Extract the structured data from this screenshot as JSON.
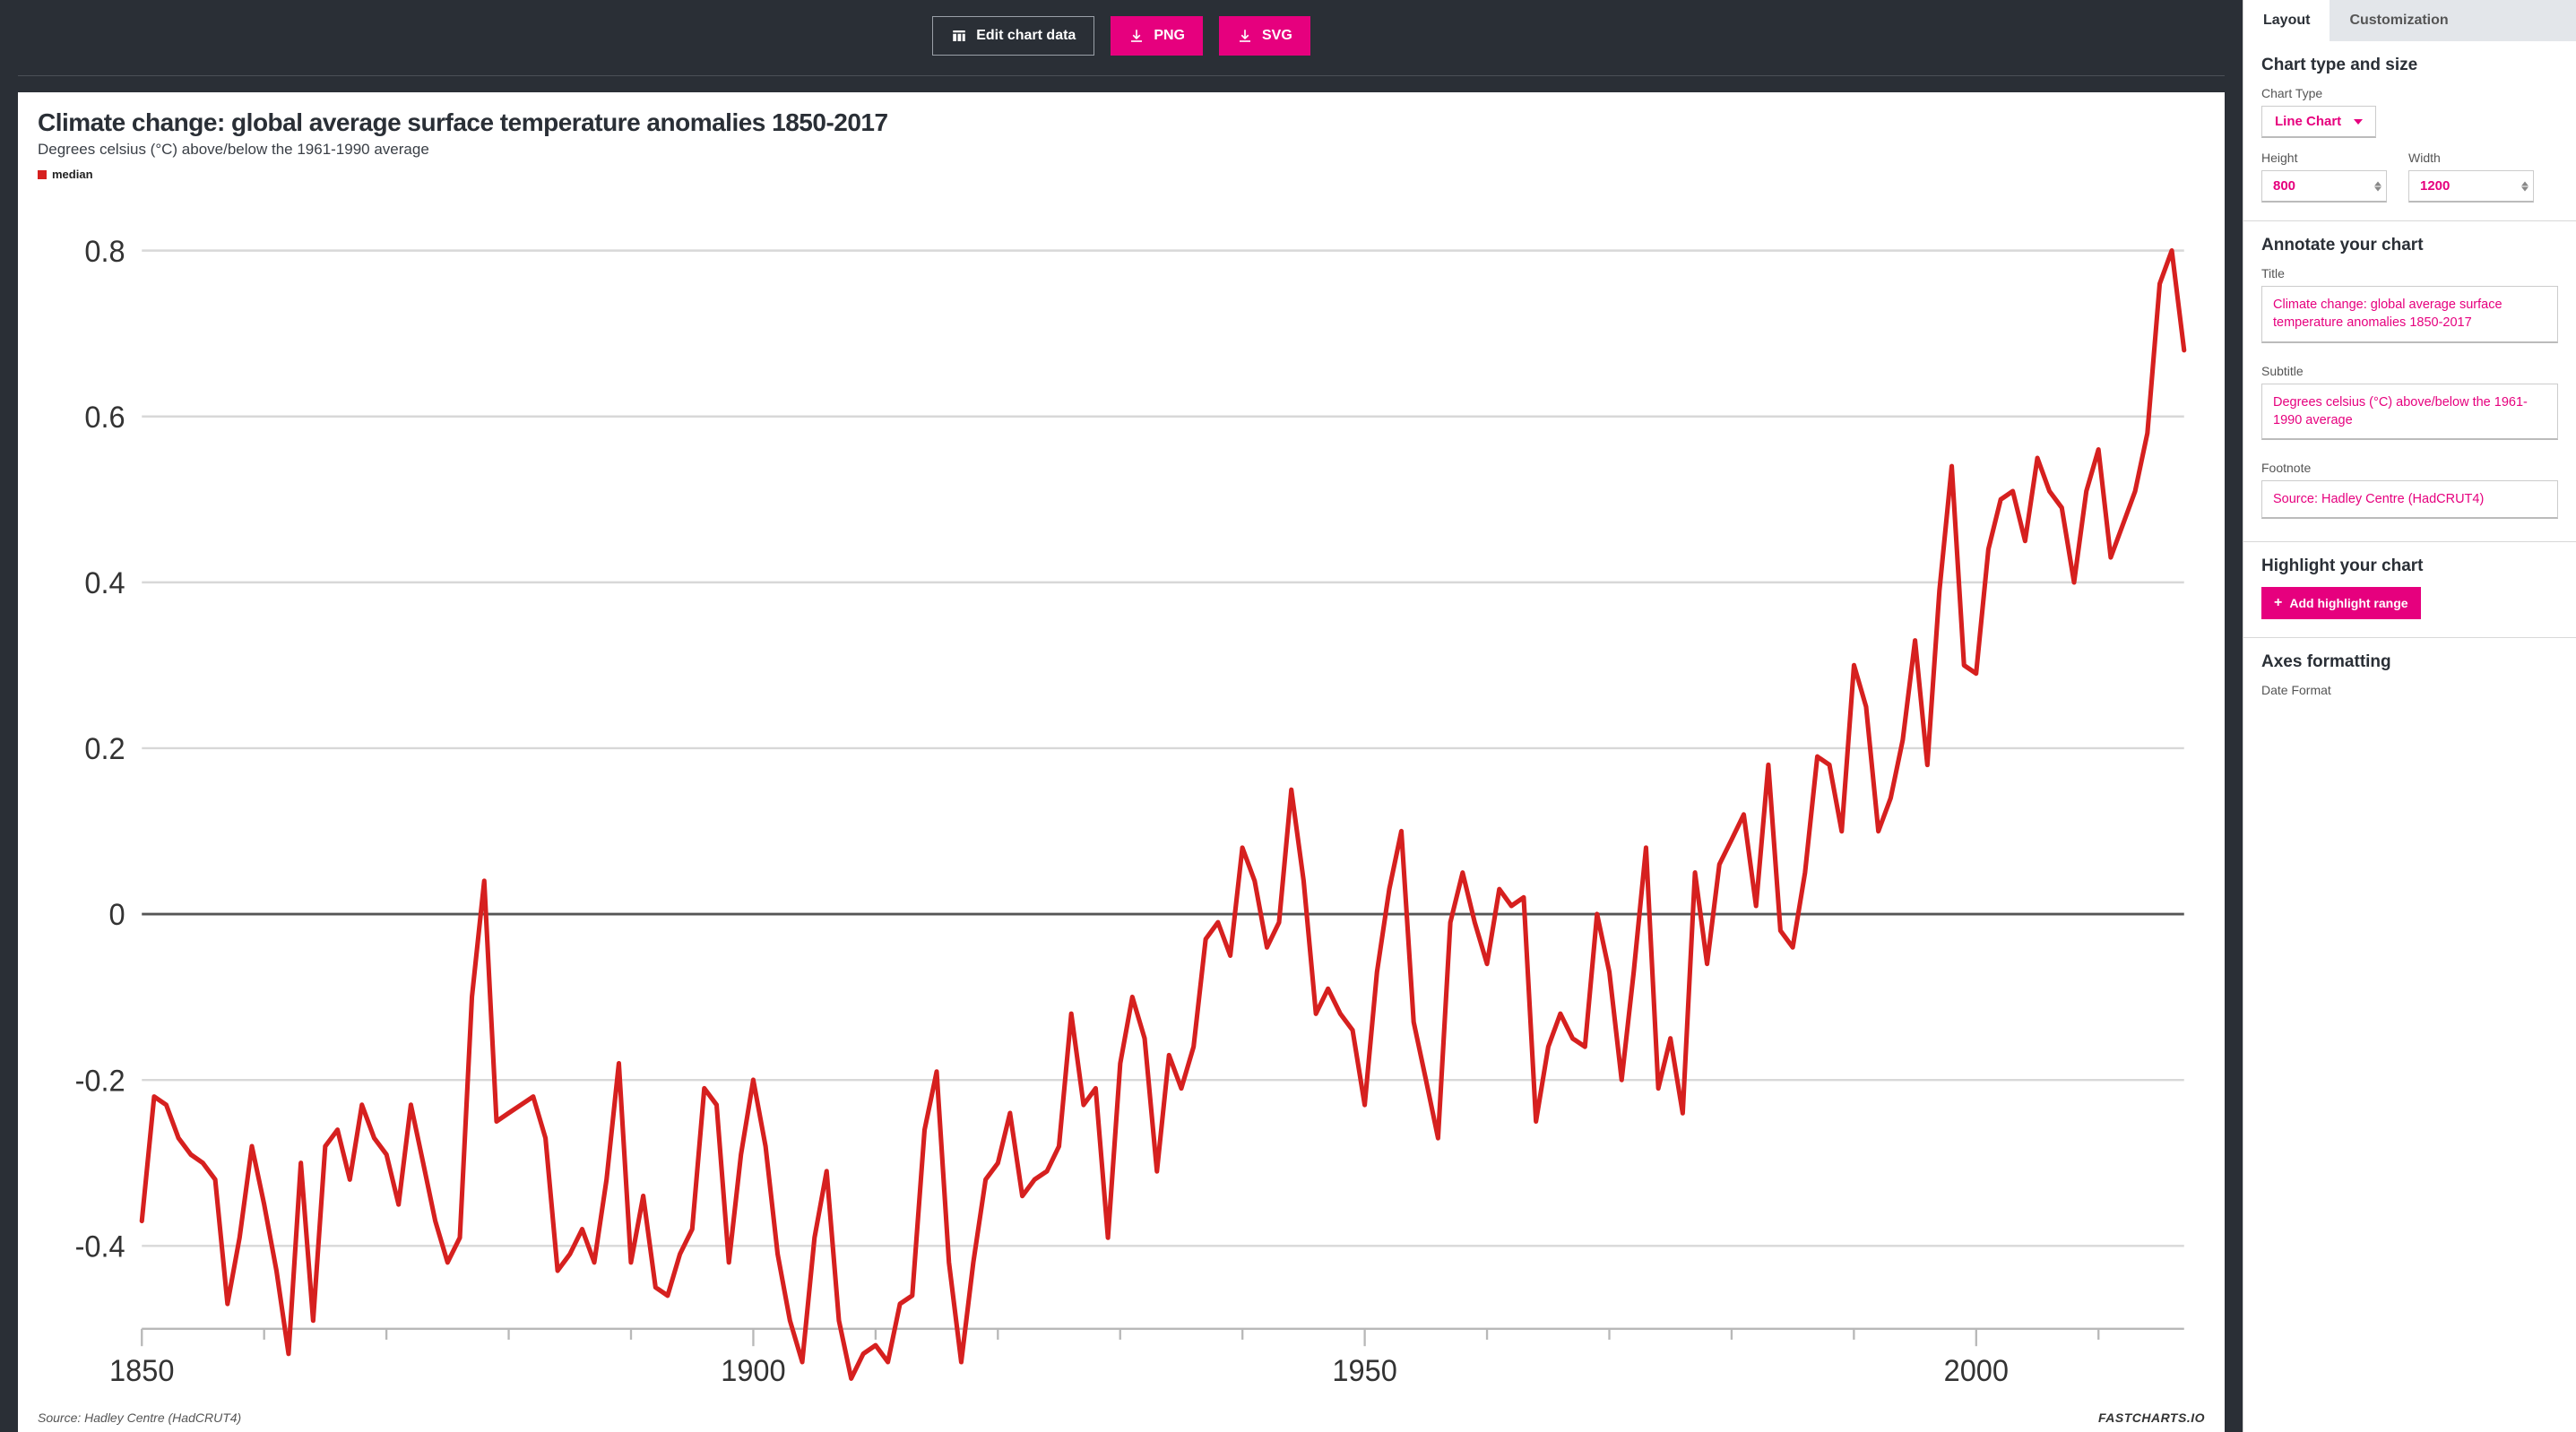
{
  "toolbar": {
    "edit_label": "Edit chart data",
    "png_label": "PNG",
    "svg_label": "SVG"
  },
  "chart": {
    "type": "line",
    "title": "Climate change: global average surface temperature anomalies 1850-2017",
    "subtitle": "Degrees celsius (°C) above/below the 1961-1990 average",
    "legend_label": "median",
    "source_text": "Source: Hadley Centre (HadCRUT4)",
    "brand": "FASTCHARTS.IO",
    "colors": {
      "line": "#d6201f",
      "background": "#ffffff",
      "grid": "#d8d8d8",
      "zero_line": "#555555",
      "axis": "#b8b8b8",
      "tick_text": "#333333"
    },
    "line_width": 2.2,
    "x": {
      "min": 1850,
      "max": 2017,
      "ticks": [
        1850,
        1900,
        1950,
        2000
      ],
      "minor_step": 10
    },
    "y": {
      "min": -0.5,
      "max": 0.85,
      "ticks": [
        -0.4,
        -0.2,
        0,
        0.2,
        0.4,
        0.6,
        0.8
      ]
    },
    "series": [
      {
        "x": 1850,
        "y": -0.37
      },
      {
        "x": 1851,
        "y": -0.22
      },
      {
        "x": 1852,
        "y": -0.23
      },
      {
        "x": 1853,
        "y": -0.27
      },
      {
        "x": 1854,
        "y": -0.29
      },
      {
        "x": 1855,
        "y": -0.3
      },
      {
        "x": 1856,
        "y": -0.32
      },
      {
        "x": 1857,
        "y": -0.47
      },
      {
        "x": 1858,
        "y": -0.39
      },
      {
        "x": 1859,
        "y": -0.28
      },
      {
        "x": 1860,
        "y": -0.35
      },
      {
        "x": 1861,
        "y": -0.43
      },
      {
        "x": 1862,
        "y": -0.53
      },
      {
        "x": 1863,
        "y": -0.3
      },
      {
        "x": 1864,
        "y": -0.49
      },
      {
        "x": 1865,
        "y": -0.28
      },
      {
        "x": 1866,
        "y": -0.26
      },
      {
        "x": 1867,
        "y": -0.32
      },
      {
        "x": 1868,
        "y": -0.23
      },
      {
        "x": 1869,
        "y": -0.27
      },
      {
        "x": 1870,
        "y": -0.29
      },
      {
        "x": 1871,
        "y": -0.35
      },
      {
        "x": 1872,
        "y": -0.23
      },
      {
        "x": 1873,
        "y": -0.3
      },
      {
        "x": 1874,
        "y": -0.37
      },
      {
        "x": 1875,
        "y": -0.42
      },
      {
        "x": 1876,
        "y": -0.39
      },
      {
        "x": 1877,
        "y": -0.1
      },
      {
        "x": 1878,
        "y": 0.04
      },
      {
        "x": 1879,
        "y": -0.25
      },
      {
        "x": 1880,
        "y": -0.24
      },
      {
        "x": 1881,
        "y": -0.23
      },
      {
        "x": 1882,
        "y": -0.22
      },
      {
        "x": 1883,
        "y": -0.27
      },
      {
        "x": 1884,
        "y": -0.43
      },
      {
        "x": 1885,
        "y": -0.41
      },
      {
        "x": 1886,
        "y": -0.38
      },
      {
        "x": 1887,
        "y": -0.42
      },
      {
        "x": 1888,
        "y": -0.32
      },
      {
        "x": 1889,
        "y": -0.18
      },
      {
        "x": 1890,
        "y": -0.42
      },
      {
        "x": 1891,
        "y": -0.34
      },
      {
        "x": 1892,
        "y": -0.45
      },
      {
        "x": 1893,
        "y": -0.46
      },
      {
        "x": 1894,
        "y": -0.41
      },
      {
        "x": 1895,
        "y": -0.38
      },
      {
        "x": 1896,
        "y": -0.21
      },
      {
        "x": 1897,
        "y": -0.23
      },
      {
        "x": 1898,
        "y": -0.42
      },
      {
        "x": 1899,
        "y": -0.29
      },
      {
        "x": 1900,
        "y": -0.2
      },
      {
        "x": 1901,
        "y": -0.28
      },
      {
        "x": 1902,
        "y": -0.41
      },
      {
        "x": 1903,
        "y": -0.49
      },
      {
        "x": 1904,
        "y": -0.54
      },
      {
        "x": 1905,
        "y": -0.39
      },
      {
        "x": 1906,
        "y": -0.31
      },
      {
        "x": 1907,
        "y": -0.49
      },
      {
        "x": 1908,
        "y": -0.56
      },
      {
        "x": 1909,
        "y": -0.53
      },
      {
        "x": 1910,
        "y": -0.52
      },
      {
        "x": 1911,
        "y": -0.54
      },
      {
        "x": 1912,
        "y": -0.47
      },
      {
        "x": 1913,
        "y": -0.46
      },
      {
        "x": 1914,
        "y": -0.26
      },
      {
        "x": 1915,
        "y": -0.19
      },
      {
        "x": 1916,
        "y": -0.42
      },
      {
        "x": 1917,
        "y": -0.54
      },
      {
        "x": 1918,
        "y": -0.42
      },
      {
        "x": 1919,
        "y": -0.32
      },
      {
        "x": 1920,
        "y": -0.3
      },
      {
        "x": 1921,
        "y": -0.24
      },
      {
        "x": 1922,
        "y": -0.34
      },
      {
        "x": 1923,
        "y": -0.32
      },
      {
        "x": 1924,
        "y": -0.31
      },
      {
        "x": 1925,
        "y": -0.28
      },
      {
        "x": 1926,
        "y": -0.12
      },
      {
        "x": 1927,
        "y": -0.23
      },
      {
        "x": 1928,
        "y": -0.21
      },
      {
        "x": 1929,
        "y": -0.39
      },
      {
        "x": 1930,
        "y": -0.18
      },
      {
        "x": 1931,
        "y": -0.1
      },
      {
        "x": 1932,
        "y": -0.15
      },
      {
        "x": 1933,
        "y": -0.31
      },
      {
        "x": 1934,
        "y": -0.17
      },
      {
        "x": 1935,
        "y": -0.21
      },
      {
        "x": 1936,
        "y": -0.16
      },
      {
        "x": 1937,
        "y": -0.03
      },
      {
        "x": 1938,
        "y": -0.01
      },
      {
        "x": 1939,
        "y": -0.05
      },
      {
        "x": 1940,
        "y": 0.08
      },
      {
        "x": 1941,
        "y": 0.04
      },
      {
        "x": 1942,
        "y": -0.04
      },
      {
        "x": 1943,
        "y": -0.01
      },
      {
        "x": 1944,
        "y": 0.15
      },
      {
        "x": 1945,
        "y": 0.04
      },
      {
        "x": 1946,
        "y": -0.12
      },
      {
        "x": 1947,
        "y": -0.09
      },
      {
        "x": 1948,
        "y": -0.12
      },
      {
        "x": 1949,
        "y": -0.14
      },
      {
        "x": 1950,
        "y": -0.23
      },
      {
        "x": 1951,
        "y": -0.07
      },
      {
        "x": 1952,
        "y": 0.03
      },
      {
        "x": 1953,
        "y": 0.1
      },
      {
        "x": 1954,
        "y": -0.13
      },
      {
        "x": 1955,
        "y": -0.2
      },
      {
        "x": 1956,
        "y": -0.27
      },
      {
        "x": 1957,
        "y": -0.01
      },
      {
        "x": 1958,
        "y": 0.05
      },
      {
        "x": 1959,
        "y": -0.01
      },
      {
        "x": 1960,
        "y": -0.06
      },
      {
        "x": 1961,
        "y": 0.03
      },
      {
        "x": 1962,
        "y": 0.01
      },
      {
        "x": 1963,
        "y": 0.02
      },
      {
        "x": 1964,
        "y": -0.25
      },
      {
        "x": 1965,
        "y": -0.16
      },
      {
        "x": 1966,
        "y": -0.12
      },
      {
        "x": 1967,
        "y": -0.15
      },
      {
        "x": 1968,
        "y": -0.16
      },
      {
        "x": 1969,
        "y": 0.0
      },
      {
        "x": 1970,
        "y": -0.07
      },
      {
        "x": 1971,
        "y": -0.2
      },
      {
        "x": 1972,
        "y": -0.07
      },
      {
        "x": 1973,
        "y": 0.08
      },
      {
        "x": 1974,
        "y": -0.21
      },
      {
        "x": 1975,
        "y": -0.15
      },
      {
        "x": 1976,
        "y": -0.24
      },
      {
        "x": 1977,
        "y": 0.05
      },
      {
        "x": 1978,
        "y": -0.06
      },
      {
        "x": 1979,
        "y": 0.06
      },
      {
        "x": 1980,
        "y": 0.09
      },
      {
        "x": 1981,
        "y": 0.12
      },
      {
        "x": 1982,
        "y": 0.01
      },
      {
        "x": 1983,
        "y": 0.18
      },
      {
        "x": 1984,
        "y": -0.02
      },
      {
        "x": 1985,
        "y": -0.04
      },
      {
        "x": 1986,
        "y": 0.05
      },
      {
        "x": 1987,
        "y": 0.19
      },
      {
        "x": 1988,
        "y": 0.18
      },
      {
        "x": 1989,
        "y": 0.1
      },
      {
        "x": 1990,
        "y": 0.3
      },
      {
        "x": 1991,
        "y": 0.25
      },
      {
        "x": 1992,
        "y": 0.1
      },
      {
        "x": 1993,
        "y": 0.14
      },
      {
        "x": 1994,
        "y": 0.21
      },
      {
        "x": 1995,
        "y": 0.33
      },
      {
        "x": 1996,
        "y": 0.18
      },
      {
        "x": 1997,
        "y": 0.39
      },
      {
        "x": 1998,
        "y": 0.54
      },
      {
        "x": 1999,
        "y": 0.3
      },
      {
        "x": 2000,
        "y": 0.29
      },
      {
        "x": 2001,
        "y": 0.44
      },
      {
        "x": 2002,
        "y": 0.5
      },
      {
        "x": 2003,
        "y": 0.51
      },
      {
        "x": 2004,
        "y": 0.45
      },
      {
        "x": 2005,
        "y": 0.55
      },
      {
        "x": 2006,
        "y": 0.51
      },
      {
        "x": 2007,
        "y": 0.49
      },
      {
        "x": 2008,
        "y": 0.4
      },
      {
        "x": 2009,
        "y": 0.51
      },
      {
        "x": 2010,
        "y": 0.56
      },
      {
        "x": 2011,
        "y": 0.43
      },
      {
        "x": 2012,
        "y": 0.47
      },
      {
        "x": 2013,
        "y": 0.51
      },
      {
        "x": 2014,
        "y": 0.58
      },
      {
        "x": 2015,
        "y": 0.76
      },
      {
        "x": 2016,
        "y": 0.8
      },
      {
        "x": 2017,
        "y": 0.68
      }
    ]
  },
  "side": {
    "tabs": {
      "layout": "Layout",
      "customization": "Customization"
    },
    "type_section": {
      "heading": "Chart type and size",
      "chart_type_label": "Chart Type",
      "chart_type_value": "Line Chart",
      "height_label": "Height",
      "height_value": "800",
      "width_label": "Width",
      "width_value": "1200"
    },
    "annotate_section": {
      "heading": "Annotate your chart",
      "title_label": "Title",
      "title_value": "Climate change: global average surface temperature anomalies 1850-2017",
      "subtitle_label": "Subtitle",
      "subtitle_value": "Degrees celsius (°C) above/below the 1961-1990 average",
      "footnote_label": "Footnote",
      "footnote_value": "Source: Hadley Centre (HadCRUT4)"
    },
    "highlight_section": {
      "heading": "Highlight your chart",
      "add_button": "Add highlight range"
    },
    "axes_section": {
      "heading": "Axes formatting",
      "date_format_label": "Date Format"
    }
  }
}
